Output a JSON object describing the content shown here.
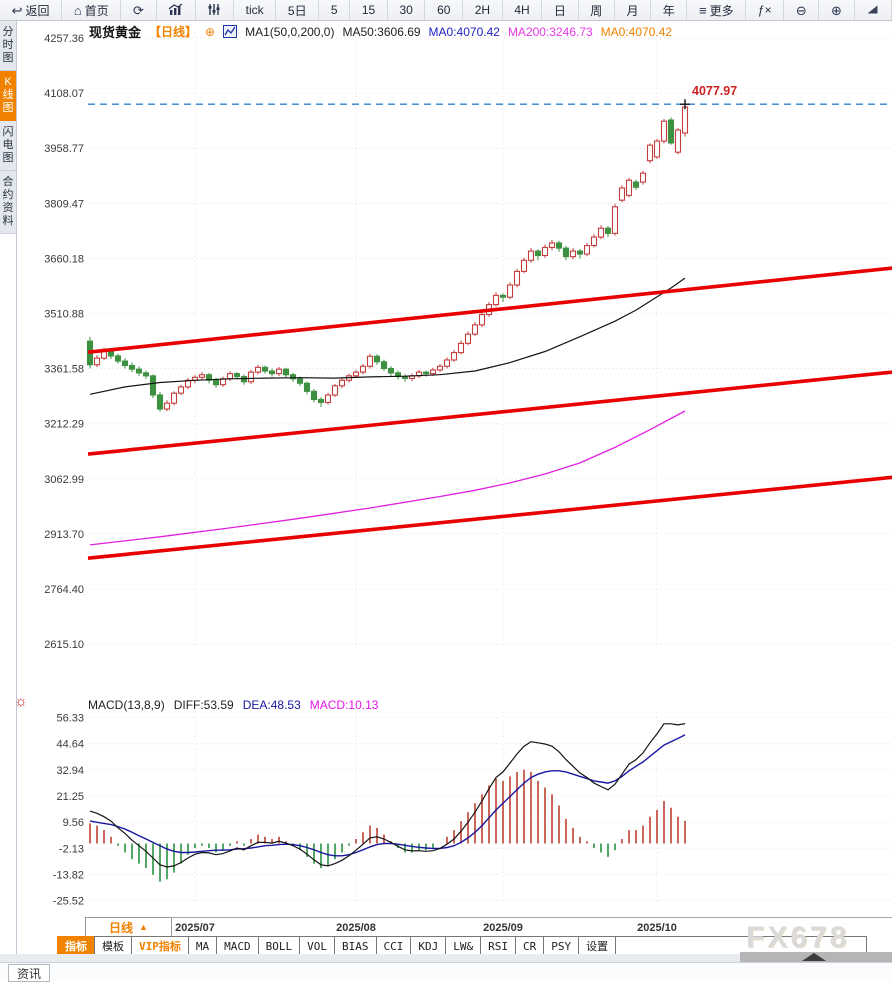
{
  "toolbar": {
    "items": [
      {
        "name": "back",
        "icon": "back",
        "label": "返回"
      },
      {
        "name": "home",
        "icon": "home",
        "label": "首页"
      },
      {
        "name": "refresh",
        "icon": "refresh",
        "label": ""
      },
      {
        "name": "chart-type",
        "icon": "chart",
        "label": ""
      },
      {
        "name": "indicator-sliders",
        "icon": "sliders",
        "label": ""
      },
      {
        "name": "period-tick",
        "label": "tick"
      },
      {
        "name": "period-5d",
        "label": "5日"
      },
      {
        "name": "period-5",
        "label": "5"
      },
      {
        "name": "period-15",
        "label": "15"
      },
      {
        "name": "period-30",
        "label": "30"
      },
      {
        "name": "period-60",
        "label": "60"
      },
      {
        "name": "period-2h",
        "label": "2H"
      },
      {
        "name": "period-4h",
        "label": "4H"
      },
      {
        "name": "period-day",
        "label": "日"
      },
      {
        "name": "period-week",
        "label": "周"
      },
      {
        "name": "period-month",
        "label": "月"
      },
      {
        "name": "period-year",
        "label": "年"
      },
      {
        "name": "more",
        "icon": "more",
        "label": "更多"
      },
      {
        "name": "fx",
        "label": "ƒ×"
      },
      {
        "name": "zoom-out",
        "icon": "zoomout",
        "label": ""
      },
      {
        "name": "zoom-in",
        "icon": "zoomin",
        "label": ""
      },
      {
        "name": "draw",
        "icon": "pen",
        "label": ""
      }
    ]
  },
  "sidebar": {
    "items": [
      {
        "label": "分时图",
        "active": false
      },
      {
        "label": "K线图",
        "active": true
      },
      {
        "label": "闪电图",
        "active": false
      },
      {
        "label": "合约资料",
        "active": false
      }
    ]
  },
  "legend": {
    "symbol": "现货黄金",
    "period": "【日线】",
    "plus": "⊕",
    "ma_settings": "MA1(50,0,200,0)",
    "ma50": "MA50:3606.69",
    "ma0_blue": "MA0:4070.42",
    "ma200": "MA200:3246.73",
    "ma0_orange": "MA0:4070.42"
  },
  "macd_legend": {
    "title": "MACD(13,8,9)",
    "diff": "DIFF:53.59",
    "dea": "DEA:48.53",
    "macd": "MACD:10.13"
  },
  "last_price": {
    "label": "4077.97"
  },
  "indicator_settings_icon": "☼",
  "period_selector": {
    "label": "日线",
    "arrow": "▲"
  },
  "indicator_tabs": [
    {
      "label": "指标",
      "active": true,
      "vip": false
    },
    {
      "label": "模板",
      "active": false,
      "vip": false
    },
    {
      "label": "VIP指标",
      "active": false,
      "vip": true
    },
    {
      "label": "MA",
      "active": false,
      "vip": false
    },
    {
      "label": "MACD",
      "active": false,
      "vip": false
    },
    {
      "label": "BOLL",
      "active": false,
      "vip": false
    },
    {
      "label": "VOL",
      "active": false,
      "vip": false
    },
    {
      "label": "BIAS",
      "active": false,
      "vip": false
    },
    {
      "label": "CCI",
      "active": false,
      "vip": false
    },
    {
      "label": "KDJ",
      "active": false,
      "vip": false
    },
    {
      "label": "LW&",
      "active": false,
      "vip": false
    },
    {
      "label": "RSI",
      "active": false,
      "vip": false
    },
    {
      "label": "CR",
      "active": false,
      "vip": false
    },
    {
      "label": "PSY",
      "active": false,
      "vip": false
    },
    {
      "label": "设置",
      "active": false,
      "vip": false
    }
  ],
  "watermark": "FX678",
  "statusbar": {
    "news_tab": "资讯"
  },
  "colors": {
    "accent_orange": "#f08200",
    "candle_up": "#c43c3c",
    "candle_down": "#3d9140",
    "trend_line": "#e90000",
    "dashed_line": "#2f7fd6",
    "ma50": "#141414",
    "ma200": "#e020e0",
    "diff_line": "#141414",
    "dea_line": "#1717a0",
    "hist_up": "#c45548",
    "hist_down": "#3f9e52",
    "axis_text": "#3a3a3a",
    "grid": "#f0dcdc",
    "high_label": "#cc2222"
  },
  "chart_data": {
    "type": "candlestick",
    "title": "现货黄金 日线 (spot gold daily with MACD)",
    "price_axis": {
      "ticks": [
        "4257.36",
        "4108.07",
        "3958.77",
        "3809.47",
        "3660.18",
        "3510.88",
        "3361.58",
        "3212.29",
        "3062.99",
        "2913.70",
        "2764.40",
        "2615.10"
      ]
    },
    "macd_axis": {
      "ticks": [
        "56.33",
        "44.64",
        "32.94",
        "21.25",
        "9.56",
        "-2.13",
        "-13.82",
        "-25.52"
      ]
    },
    "months": [
      {
        "label": "2025/07",
        "index": 15
      },
      {
        "label": "2025/08",
        "index": 38
      },
      {
        "label": "2025/09",
        "index": 59
      },
      {
        "label": "2025/10",
        "index": 81
      }
    ],
    "high_value": 4077.97,
    "candles": [
      [
        3436,
        3448,
        3362,
        3372
      ],
      [
        3372,
        3398,
        3366,
        3390
      ],
      [
        3390,
        3418,
        3385,
        3410
      ],
      [
        3410,
        3415,
        3388,
        3396
      ],
      [
        3396,
        3402,
        3375,
        3382
      ],
      [
        3382,
        3390,
        3362,
        3370
      ],
      [
        3370,
        3378,
        3352,
        3360
      ],
      [
        3360,
        3368,
        3342,
        3350
      ],
      [
        3350,
        3356,
        3334,
        3342
      ],
      [
        3342,
        3346,
        3282,
        3290
      ],
      [
        3290,
        3298,
        3245,
        3252
      ],
      [
        3252,
        3276,
        3246,
        3268
      ],
      [
        3268,
        3300,
        3262,
        3295
      ],
      [
        3295,
        3318,
        3290,
        3312
      ],
      [
        3312,
        3336,
        3306,
        3330
      ],
      [
        3330,
        3344,
        3322,
        3338
      ],
      [
        3338,
        3352,
        3330,
        3345
      ],
      [
        3345,
        3350,
        3322,
        3330
      ],
      [
        3330,
        3336,
        3310,
        3318
      ],
      [
        3318,
        3340,
        3312,
        3334
      ],
      [
        3334,
        3354,
        3328,
        3348
      ],
      [
        3348,
        3352,
        3332,
        3340
      ],
      [
        3340,
        3346,
        3318,
        3326
      ],
      [
        3326,
        3358,
        3320,
        3352
      ],
      [
        3352,
        3372,
        3346,
        3365
      ],
      [
        3365,
        3370,
        3348,
        3355
      ],
      [
        3355,
        3362,
        3340,
        3348
      ],
      [
        3348,
        3366,
        3342,
        3360
      ],
      [
        3360,
        3364,
        3338,
        3345
      ],
      [
        3345,
        3350,
        3326,
        3334
      ],
      [
        3334,
        3340,
        3314,
        3322
      ],
      [
        3322,
        3326,
        3292,
        3300
      ],
      [
        3300,
        3306,
        3270,
        3278
      ],
      [
        3278,
        3284,
        3258,
        3270
      ],
      [
        3270,
        3296,
        3264,
        3290
      ],
      [
        3290,
        3320,
        3285,
        3315
      ],
      [
        3315,
        3336,
        3308,
        3330
      ],
      [
        3330,
        3348,
        3324,
        3342
      ],
      [
        3342,
        3358,
        3336,
        3352
      ],
      [
        3352,
        3374,
        3346,
        3368
      ],
      [
        3368,
        3402,
        3362,
        3395
      ],
      [
        3395,
        3400,
        3372,
        3380
      ],
      [
        3380,
        3386,
        3355,
        3362
      ],
      [
        3362,
        3368,
        3342,
        3350
      ],
      [
        3350,
        3356,
        3332,
        3340
      ],
      [
        3340,
        3346,
        3326,
        3335
      ],
      [
        3335,
        3348,
        3328,
        3342
      ],
      [
        3342,
        3358,
        3336,
        3352
      ],
      [
        3352,
        3356,
        3340,
        3348
      ],
      [
        3348,
        3364,
        3342,
        3358
      ],
      [
        3358,
        3374,
        3352,
        3368
      ],
      [
        3368,
        3392,
        3362,
        3385
      ],
      [
        3385,
        3412,
        3380,
        3405
      ],
      [
        3405,
        3438,
        3400,
        3430
      ],
      [
        3430,
        3462,
        3425,
        3455
      ],
      [
        3455,
        3488,
        3450,
        3480
      ],
      [
        3480,
        3514,
        3474,
        3508
      ],
      [
        3508,
        3542,
        3502,
        3535
      ],
      [
        3535,
        3568,
        3530,
        3560
      ],
      [
        3560,
        3565,
        3542,
        3555
      ],
      [
        3555,
        3595,
        3550,
        3588
      ],
      [
        3588,
        3632,
        3582,
        3625
      ],
      [
        3625,
        3662,
        3620,
        3655
      ],
      [
        3655,
        3688,
        3648,
        3680
      ],
      [
        3680,
        3685,
        3655,
        3668
      ],
      [
        3668,
        3698,
        3662,
        3690
      ],
      [
        3690,
        3710,
        3682,
        3702
      ],
      [
        3702,
        3708,
        3678,
        3688
      ],
      [
        3688,
        3694,
        3655,
        3665
      ],
      [
        3665,
        3688,
        3658,
        3680
      ],
      [
        3680,
        3686,
        3660,
        3672
      ],
      [
        3672,
        3702,
        3666,
        3695
      ],
      [
        3695,
        3726,
        3690,
        3718
      ],
      [
        3718,
        3750,
        3712,
        3742
      ],
      [
        3742,
        3748,
        3718,
        3728
      ],
      [
        3728,
        3808,
        3722,
        3800
      ],
      [
        3818,
        3858,
        3812,
        3851
      ],
      [
        3831,
        3878,
        3826,
        3872
      ],
      [
        3867,
        3874,
        3846,
        3853
      ],
      [
        3867,
        3898,
        3860,
        3891
      ],
      [
        3925,
        3972,
        3918,
        3967
      ],
      [
        3935,
        3984,
        3930,
        3978
      ],
      [
        3978,
        4038,
        3972,
        4032
      ],
      [
        4035,
        4042,
        3968,
        3973
      ],
      [
        3948,
        4014,
        3942,
        4008
      ],
      [
        4000,
        4077.97,
        3990,
        4070.42
      ]
    ],
    "ma50_points": [
      [
        0,
        3292
      ],
      [
        5,
        3312
      ],
      [
        10,
        3324
      ],
      [
        15,
        3330
      ],
      [
        20,
        3334
      ],
      [
        25,
        3336
      ],
      [
        30,
        3337
      ],
      [
        35,
        3336
      ],
      [
        40,
        3339
      ],
      [
        45,
        3341
      ],
      [
        50,
        3345
      ],
      [
        55,
        3355
      ],
      [
        60,
        3378
      ],
      [
        65,
        3408
      ],
      [
        70,
        3448
      ],
      [
        75,
        3490
      ],
      [
        78,
        3520
      ],
      [
        81,
        3556
      ],
      [
        83,
        3580
      ],
      [
        85,
        3606.69
      ]
    ],
    "ma200_points": [
      [
        0,
        2884
      ],
      [
        10,
        2906
      ],
      [
        20,
        2930
      ],
      [
        30,
        2956
      ],
      [
        40,
        2984
      ],
      [
        50,
        3015
      ],
      [
        55,
        3032
      ],
      [
        60,
        3052
      ],
      [
        65,
        3076
      ],
      [
        70,
        3106
      ],
      [
        75,
        3148
      ],
      [
        80,
        3196
      ],
      [
        85,
        3246.73
      ]
    ],
    "trend_lines": [
      {
        "from": 3406,
        "to": 3634
      },
      {
        "from": 3130,
        "to": 3352
      },
      {
        "from": 2848,
        "to": 3067
      }
    ],
    "macd": {
      "hist": [
        9,
        8,
        6,
        3,
        -1,
        -4,
        -7,
        -9,
        -11,
        -14,
        -17,
        -16,
        -13,
        -9,
        -5,
        -2,
        -1,
        -2,
        -4,
        -3,
        -1,
        1,
        -1,
        2,
        4,
        3,
        2,
        3,
        1,
        -1,
        -3,
        -6,
        -9,
        -11,
        -10,
        -7,
        -4,
        -1,
        2,
        5,
        8,
        7,
        4,
        1,
        -2,
        -4,
        -4,
        -3,
        -3,
        -2,
        0,
        3,
        6,
        10,
        14,
        18,
        22,
        26,
        29,
        28,
        30,
        32,
        33,
        32,
        28,
        25,
        22,
        17,
        11,
        7,
        3,
        1,
        -2,
        -4,
        -6,
        -3,
        2,
        6,
        6,
        8,
        12,
        15,
        19,
        16,
        12,
        10.13
      ],
      "dea": [
        10,
        9.5,
        9,
        8.5,
        7.5,
        6.5,
        5,
        3.5,
        2,
        0.5,
        -1,
        -2.5,
        -3.5,
        -4,
        -4,
        -3.8,
        -3.5,
        -3.2,
        -3,
        -3,
        -2.8,
        -2.5,
        -2.3,
        -2,
        -1.5,
        -1,
        -0.8,
        -0.5,
        -0.3,
        -0.5,
        -1,
        -1.8,
        -2.8,
        -4,
        -5,
        -5.5,
        -5.5,
        -5,
        -4,
        -2.8,
        -1.5,
        -0.5,
        0,
        0,
        -0.3,
        -0.8,
        -1.3,
        -1.7,
        -2,
        -2.2,
        -2.2,
        -1.8,
        -1,
        0.5,
        2.5,
        5,
        8,
        11.5,
        15,
        18,
        21,
        24,
        27,
        29.5,
        31,
        32,
        32.5,
        32.5,
        32,
        31,
        30,
        29,
        28,
        27.5,
        27,
        28,
        30,
        32.5,
        34.5,
        36.5,
        39,
        41.5,
        44,
        45.5,
        47,
        48.53
      ],
      "diff": [
        14.5,
        13.5,
        12,
        10,
        7,
        4.5,
        1.5,
        -1,
        -3.5,
        -6.5,
        -9.5,
        -10.5,
        -10,
        -8.5,
        -6.5,
        -4.8,
        -4,
        -4.2,
        -5,
        -4.5,
        -3.3,
        -2,
        -2.8,
        -1,
        0.5,
        0.5,
        0.2,
        1,
        0.2,
        -1,
        -2.5,
        -4.8,
        -7.3,
        -9.5,
        -10,
        -9,
        -7.5,
        -5.5,
        -3,
        -0.3,
        2.5,
        3,
        2,
        0.5,
        -1.3,
        -2.8,
        -3.3,
        -3.2,
        -3.5,
        -3.2,
        -2.2,
        -0.3,
        2,
        5.5,
        9.5,
        14,
        19,
        24.5,
        29.5,
        32,
        36,
        40,
        43.5,
        45.5,
        45,
        44.5,
        43.5,
        41,
        37.5,
        34.5,
        31.5,
        29.5,
        27,
        25.5,
        24,
        26.5,
        31,
        35.5,
        37.5,
        40.5,
        45,
        49,
        53.5,
        53.5,
        53,
        53.59
      ]
    }
  }
}
